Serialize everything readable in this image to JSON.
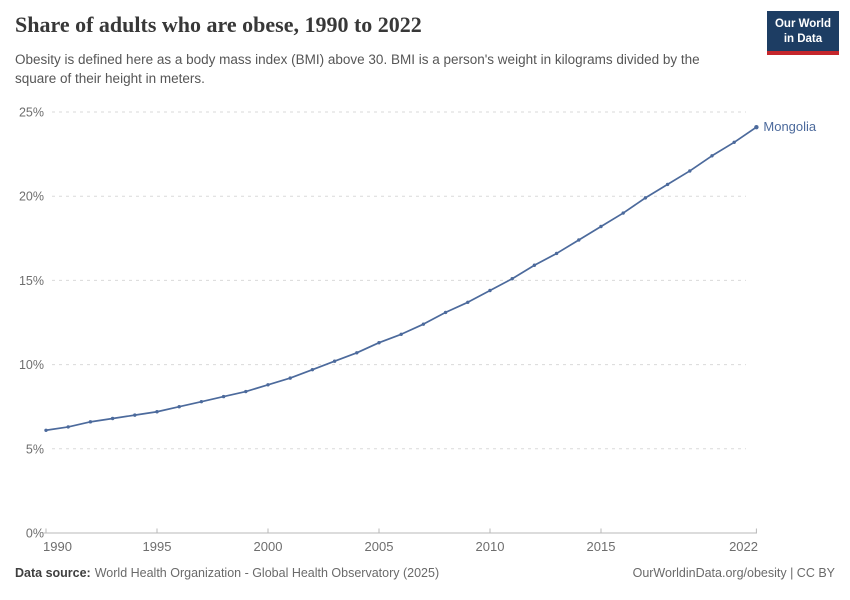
{
  "header": {
    "title": "Share of adults who are obese, 1990 to 2022",
    "subtitle": "Obesity is defined here as a body mass index (BMI) above 30. BMI is a person's weight in kilograms divided by the square of their height in meters.",
    "logo": {
      "line1": "Our World",
      "line2": "in Data",
      "bg_color": "#1d3d63",
      "accent_color": "#c5262c"
    }
  },
  "chart_data": {
    "type": "line",
    "title": "Share of adults who are obese, 1990 to 2022",
    "xlabel": "",
    "ylabel": "",
    "xlim": [
      1990,
      2022
    ],
    "ylim": [
      0,
      25
    ],
    "grid": "horizontal-dashed",
    "legend_position": "end-of-line-label",
    "x_ticks": [
      {
        "v": 1990,
        "label": "1990"
      },
      {
        "v": 1995,
        "label": "1995"
      },
      {
        "v": 2000,
        "label": "2000"
      },
      {
        "v": 2005,
        "label": "2005"
      },
      {
        "v": 2010,
        "label": "2010"
      },
      {
        "v": 2015,
        "label": "2015"
      },
      {
        "v": 2022,
        "label": "2022"
      }
    ],
    "y_ticks": [
      {
        "v": 0,
        "label": "0%"
      },
      {
        "v": 5,
        "label": "5%"
      },
      {
        "v": 10,
        "label": "10%"
      },
      {
        "v": 15,
        "label": "15%"
      },
      {
        "v": 20,
        "label": "20%"
      },
      {
        "v": 25,
        "label": "25%"
      }
    ],
    "series": [
      {
        "name": "Mongolia",
        "color": "#4C6A9C",
        "x": [
          1990,
          1991,
          1992,
          1993,
          1994,
          1995,
          1996,
          1997,
          1998,
          1999,
          2000,
          2001,
          2002,
          2003,
          2004,
          2005,
          2006,
          2007,
          2008,
          2009,
          2010,
          2011,
          2012,
          2013,
          2014,
          2015,
          2016,
          2017,
          2018,
          2019,
          2020,
          2021,
          2022
        ],
        "values": [
          6.1,
          6.3,
          6.6,
          6.8,
          7.0,
          7.2,
          7.5,
          7.8,
          8.1,
          8.4,
          8.8,
          9.2,
          9.7,
          10.2,
          10.7,
          11.3,
          11.8,
          12.4,
          13.1,
          13.7,
          14.4,
          15.1,
          15.9,
          16.6,
          17.4,
          18.2,
          19.0,
          19.9,
          20.7,
          21.5,
          22.4,
          23.2,
          24.1
        ]
      }
    ],
    "style": {
      "grid_color": "#dadada",
      "axis_color": "#b8b8b8",
      "tick_color": "#6e6e6e"
    }
  },
  "footer": {
    "datasource_label": "Data source:",
    "datasource": "World Health Organization - Global Health Observatory (2025)",
    "attribution": "OurWorldinData.org/obesity | CC BY"
  }
}
